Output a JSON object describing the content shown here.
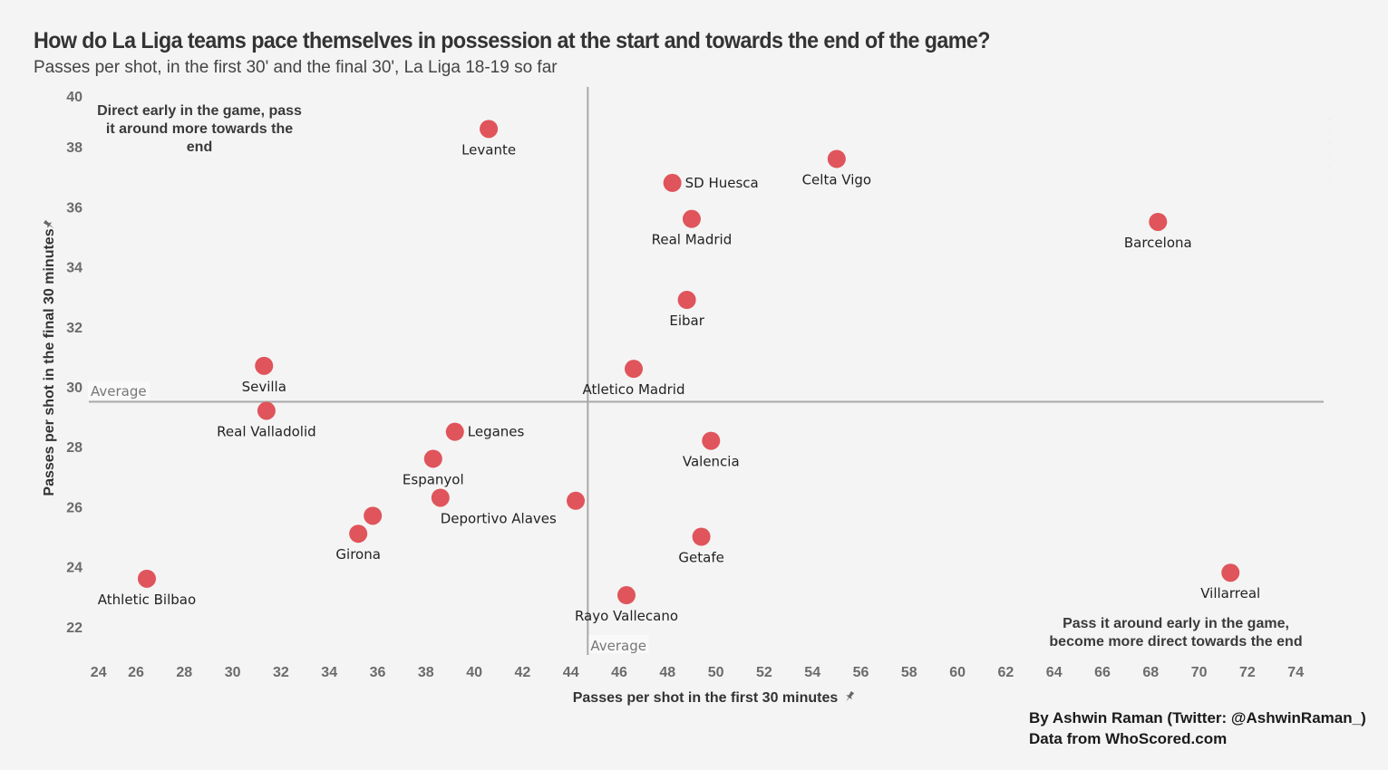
{
  "header": {
    "title": "How do La Liga teams pace themselves in possession at the start and towards the end of the game?",
    "subtitle": "Passes per shot, in the first 30' and the final 30', La Liga 18-19 so far"
  },
  "credits": {
    "line1": "By Ashwin Raman (Twitter: @AshwinRaman_)",
    "line2": "Data from WhoScored.com"
  },
  "colors": {
    "point": "#e0545b",
    "average_line": "#a8a8a8",
    "background": "#f4f4f4"
  },
  "chart_data": {
    "type": "scatter",
    "title": "How do La Liga teams pace themselves in possession at the start and towards the end of the game?",
    "subtitle": "Passes per shot, in the first 30' and the final 30', La Liga 18-19 so far",
    "xlabel": "Passes per shot in the first 30 minutes",
    "ylabel": "Passes per shot in the final 30 minutes",
    "axis_icon": "pin-icon",
    "xlim": [
      24,
      75
    ],
    "ylim": [
      22,
      40
    ],
    "x_ticks": [
      24,
      26,
      28,
      30,
      32,
      34,
      36,
      38,
      40,
      42,
      44,
      46,
      48,
      50,
      52,
      54,
      56,
      58,
      60,
      62,
      64,
      66,
      68,
      70,
      72,
      74
    ],
    "y_ticks": [
      22,
      24,
      26,
      28,
      30,
      32,
      34,
      36,
      38,
      40
    ],
    "grid": false,
    "average": {
      "x": 44.7,
      "y": 29.5,
      "label": "Average"
    },
    "annotations": [
      {
        "quadrant": "top-left",
        "lines": [
          "Direct early in the game, pass",
          "it around more towards the",
          "end"
        ]
      },
      {
        "quadrant": "bottom-right",
        "lines": [
          "Pass it around early in the game,",
          "become more direct towards the end"
        ]
      }
    ],
    "points": [
      {
        "team": "Levante",
        "x": 40.6,
        "y": 38.6,
        "label_pos": "below"
      },
      {
        "team": "SD Huesca",
        "x": 48.2,
        "y": 36.8,
        "label_pos": "right"
      },
      {
        "team": "Celta Vigo",
        "x": 55.0,
        "y": 37.6,
        "label_pos": "below"
      },
      {
        "team": "Real Madrid",
        "x": 49.0,
        "y": 35.6,
        "label_pos": "below"
      },
      {
        "team": "Barcelona",
        "x": 68.3,
        "y": 35.5,
        "label_pos": "below"
      },
      {
        "team": "Eibar",
        "x": 48.8,
        "y": 32.9,
        "label_pos": "below"
      },
      {
        "team": "Atletico Madrid",
        "x": 46.6,
        "y": 30.6,
        "label_pos": "below"
      },
      {
        "team": "Sevilla",
        "x": 31.3,
        "y": 30.7,
        "label_pos": "below"
      },
      {
        "team": "Real Valladolid",
        "x": 31.4,
        "y": 29.2,
        "label_pos": "below"
      },
      {
        "team": "Leganes",
        "x": 39.2,
        "y": 28.5,
        "label_pos": "right"
      },
      {
        "team": "Espanyol",
        "x": 38.3,
        "y": 27.6,
        "label_pos": "below"
      },
      {
        "team": "Deportivo Alaves",
        "x": 38.6,
        "y": 26.3,
        "label_pos": "below-right"
      },
      {
        "team": "",
        "x": 44.2,
        "y": 26.2,
        "label_pos": "none"
      },
      {
        "team": "",
        "x": 35.8,
        "y": 25.7,
        "label_pos": "none"
      },
      {
        "team": "Girona",
        "x": 35.2,
        "y": 25.1,
        "label_pos": "below"
      },
      {
        "team": "Valencia",
        "x": 49.8,
        "y": 28.2,
        "label_pos": "below"
      },
      {
        "team": "Getafe",
        "x": 49.4,
        "y": 25.0,
        "label_pos": "below"
      },
      {
        "team": "Rayo Vallecano",
        "x": 46.3,
        "y": 23.05,
        "label_pos": "below"
      },
      {
        "team": "Athletic Bilbao",
        "x": 26.45,
        "y": 23.6,
        "label_pos": "below"
      },
      {
        "team": "Villarreal",
        "x": 71.3,
        "y": 23.8,
        "label_pos": "below"
      }
    ]
  }
}
